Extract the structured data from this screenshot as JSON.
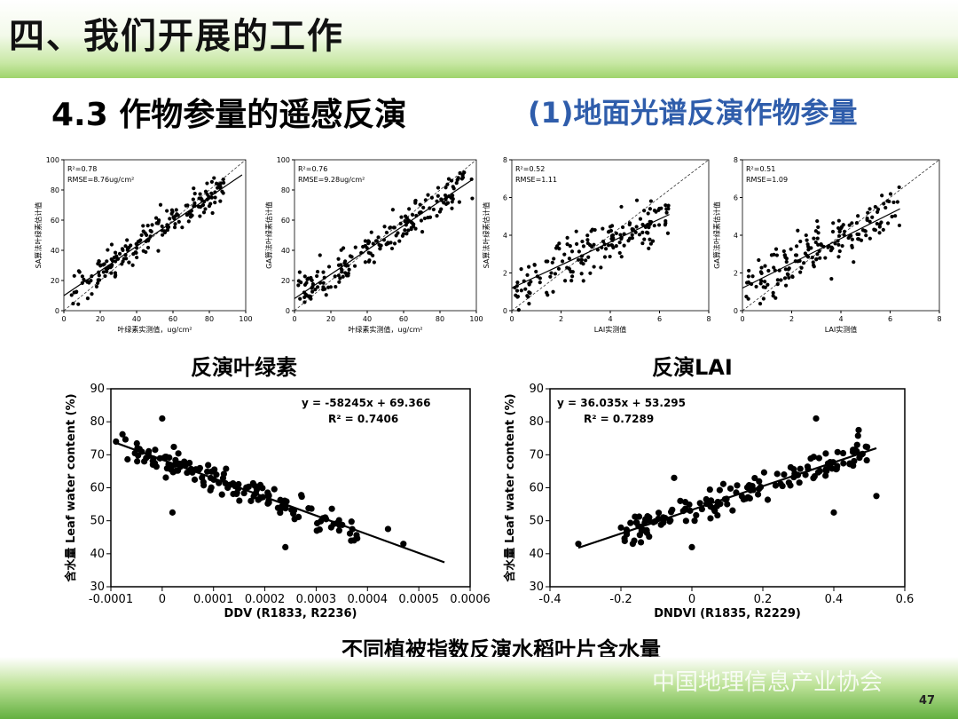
{
  "header": {
    "title": "四、我们开展的工作"
  },
  "subtitle_left": "4.3 作物参量的遥感反演",
  "subtitle_right": "(1)地面光谱反演作物参量",
  "captions": {
    "chl": "反演叶绿素",
    "lai": "反演LAI",
    "water": "不同植被指数反演水稻叶片含水量"
  },
  "watermark": "中国地理信息产业协会",
  "page_number": "47",
  "chart_data": [
    {
      "type": "scatter",
      "xlabel": "叶绿素实测值，ug/cm²",
      "ylabel": "SA算法叶绿素估计值",
      "stat1": "R²=0.78",
      "stat2": "RMSE=8.76ug/cm²",
      "xlim": [
        0,
        100
      ],
      "ylim": [
        0,
        100
      ],
      "xticks": [
        "0",
        "20",
        "40",
        "60",
        "80",
        "100"
      ],
      "yticks": [
        "0",
        "20",
        "40",
        "60",
        "80",
        "100"
      ],
      "fit": [
        [
          0,
          10
        ],
        [
          98,
          90
        ]
      ],
      "seed": 11,
      "n": 190,
      "dist": {
        "xmin": 2,
        "xmax": 88,
        "noise": 8
      }
    },
    {
      "type": "scatter",
      "xlabel": "叶绿素实测值，ug/cm²",
      "ylabel": "GA算法叶绿素估计值",
      "stat1": "R²=0.76",
      "stat2": "RMSE=9.28ug/cm²",
      "xlim": [
        0,
        100
      ],
      "ylim": [
        0,
        100
      ],
      "xticks": [
        "0",
        "20",
        "40",
        "60",
        "80",
        "100"
      ],
      "yticks": [
        "0",
        "20",
        "40",
        "60",
        "80",
        "100"
      ],
      "fit": [
        [
          0,
          8
        ],
        [
          98,
          87
        ]
      ],
      "seed": 23,
      "n": 190,
      "dist": {
        "xmin": 2,
        "xmax": 98,
        "noise": 9
      }
    },
    {
      "type": "scatter",
      "xlabel": "LAI实测值",
      "ylabel": "SA算法叶绿素估计值",
      "stat1": "R²=0.52",
      "stat2": "RMSE=1.11",
      "xlim": [
        0,
        8
      ],
      "ylim": [
        0,
        8
      ],
      "xticks": [
        "0",
        "2",
        "4",
        "6",
        "8"
      ],
      "yticks": [
        "0",
        "2",
        "4",
        "6",
        "8"
      ],
      "fit": [
        [
          0,
          1.2
        ],
        [
          6.4,
          5.1
        ]
      ],
      "seed": 37,
      "n": 170,
      "dist": {
        "xmin": 0.1,
        "xmax": 6.4,
        "noise": 0.9
      }
    },
    {
      "type": "scatter",
      "xlabel": "LAI实测值",
      "ylabel": "GA算法叶绿素估计值",
      "stat1": "R²=0.51",
      "stat2": "RMSE=1.09",
      "xlim": [
        0,
        8
      ],
      "ylim": [
        0,
        8
      ],
      "xticks": [
        "0",
        "2",
        "4",
        "6",
        "8"
      ],
      "yticks": [
        "0",
        "2",
        "4",
        "6",
        "8"
      ],
      "fit": [
        [
          0,
          1.2
        ],
        [
          6.4,
          5.4
        ]
      ],
      "seed": 41,
      "n": 170,
      "dist": {
        "xmin": 0.1,
        "xmax": 6.4,
        "noise": 0.9
      }
    },
    {
      "type": "scatter",
      "xlabel": "DDV (R1833, R2236)",
      "ylabel": "含水量 Leaf water content (%)",
      "stat1": "y = -58245x + 69.366",
      "stat2": "R² = 0.7406",
      "xlim": [
        -0.0001,
        0.0006
      ],
      "ylim": [
        30,
        90
      ],
      "xticks": [
        "-0.0001",
        "0",
        "0.0001",
        "0.0002",
        "0.0003",
        "0.0004",
        "0.0005",
        "0.0006"
      ],
      "yticks": [
        "30",
        "40",
        "50",
        "60",
        "70",
        "80",
        "90"
      ],
      "fit": [
        [
          -9e-05,
          73.6
        ],
        [
          0.00055,
          37.4
        ]
      ],
      "seed": 53,
      "n": 150,
      "dist": {
        "xmin": -9e-05,
        "xmax": 0.00038,
        "noise": 2.8
      },
      "outliers": [
        [
          0.0,
          81
        ],
        [
          0.00024,
          42
        ],
        [
          0.00044,
          47.5
        ],
        [
          0.00047,
          43
        ],
        [
          2e-05,
          52.5
        ],
        [
          -9e-05,
          74
        ]
      ]
    },
    {
      "type": "scatter",
      "xlabel": "DNDVI (R1835, R2229)",
      "ylabel": "含水量 Leaf water content (%)",
      "stat1": "y = 36.035x + 53.295",
      "stat2": "R² = 0.7289",
      "xlim": [
        -0.4,
        0.6
      ],
      "ylim": [
        30,
        90
      ],
      "xticks": [
        "-0.4",
        "-0.2",
        "0",
        "0.2",
        "0.4",
        "0.6"
      ],
      "yticks": [
        "30",
        "40",
        "50",
        "60",
        "70",
        "80",
        "90"
      ],
      "fit": [
        [
          -0.32,
          41.8
        ],
        [
          0.52,
          72.0
        ]
      ],
      "seed": 67,
      "n": 150,
      "dist": {
        "xmin": -0.2,
        "xmax": 0.5,
        "noise": 3.0
      },
      "outliers": [
        [
          -0.32,
          43
        ],
        [
          0.0,
          42
        ],
        [
          0.35,
          81
        ],
        [
          0.4,
          52.5
        ],
        [
          0.52,
          57.5
        ],
        [
          -0.05,
          63
        ],
        [
          0.47,
          77.5
        ]
      ]
    }
  ]
}
